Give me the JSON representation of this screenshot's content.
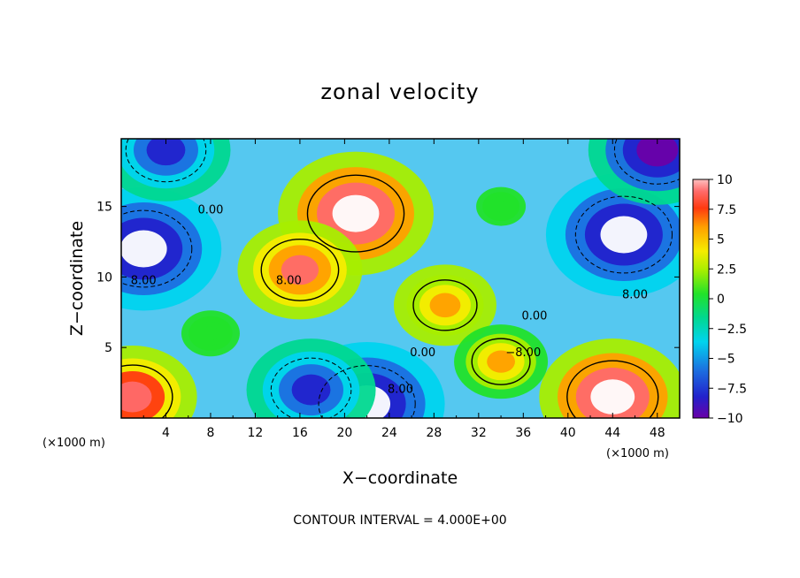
{
  "chart_data": {
    "type": "heatmap",
    "title": "zonal velocity",
    "xlabel": "X−coordinate",
    "ylabel": "Z−coordinate",
    "x_units_label": "(×1000 m)",
    "x_units_label_right": "(×1000 m)",
    "xlim": [
      0,
      50
    ],
    "ylim": [
      0,
      19.8
    ],
    "x_ticks": [
      "4",
      "8",
      "12",
      "16",
      "20",
      "24",
      "28",
      "32",
      "36",
      "40",
      "44",
      "48"
    ],
    "y_ticks": [
      "5",
      "10",
      "15"
    ],
    "colorbar": {
      "min": -10,
      "max": 10,
      "tick_labels": [
        "10",
        "7.5",
        "5",
        "2.5",
        "0",
        "−2.5",
        "−5",
        "−7.5",
        "−10"
      ],
      "above_max_color": "#ffffff",
      "below_min_color": "#ffffff"
    },
    "contour_interval_text": "CONTOUR INTERVAL = 4.000E+00",
    "contour_labels": [
      "0.00",
      "8.00",
      "8.00",
      "8.00",
      "0.00",
      "0.00",
      "8.00",
      "−8.00"
    ],
    "grid": false,
    "legend": "colorbar-right",
    "approximate_field_features": [
      {
        "x": 21,
        "z": 14.5,
        "u": 12
      },
      {
        "x": 16,
        "z": 10.5,
        "u": 8.5
      },
      {
        "x": 29,
        "z": 8,
        "u": 6
      },
      {
        "x": 2,
        "z": 12,
        "u": -12
      },
      {
        "x": 4,
        "z": 19,
        "u": -9
      },
      {
        "x": 45,
        "z": 13,
        "u": -12
      },
      {
        "x": 48,
        "z": 19,
        "u": -10
      },
      {
        "x": 22,
        "z": 1,
        "u": -12
      },
      {
        "x": 17,
        "z": 2,
        "u": -9
      },
      {
        "x": 44,
        "z": 1.5,
        "u": 11
      },
      {
        "x": 1,
        "z": 1.5,
        "u": 9
      },
      {
        "x": 8,
        "z": 6,
        "u": 1
      },
      {
        "x": 34,
        "z": 4,
        "u": 5
      },
      {
        "x": 34,
        "z": 15,
        "u": 0
      }
    ]
  }
}
